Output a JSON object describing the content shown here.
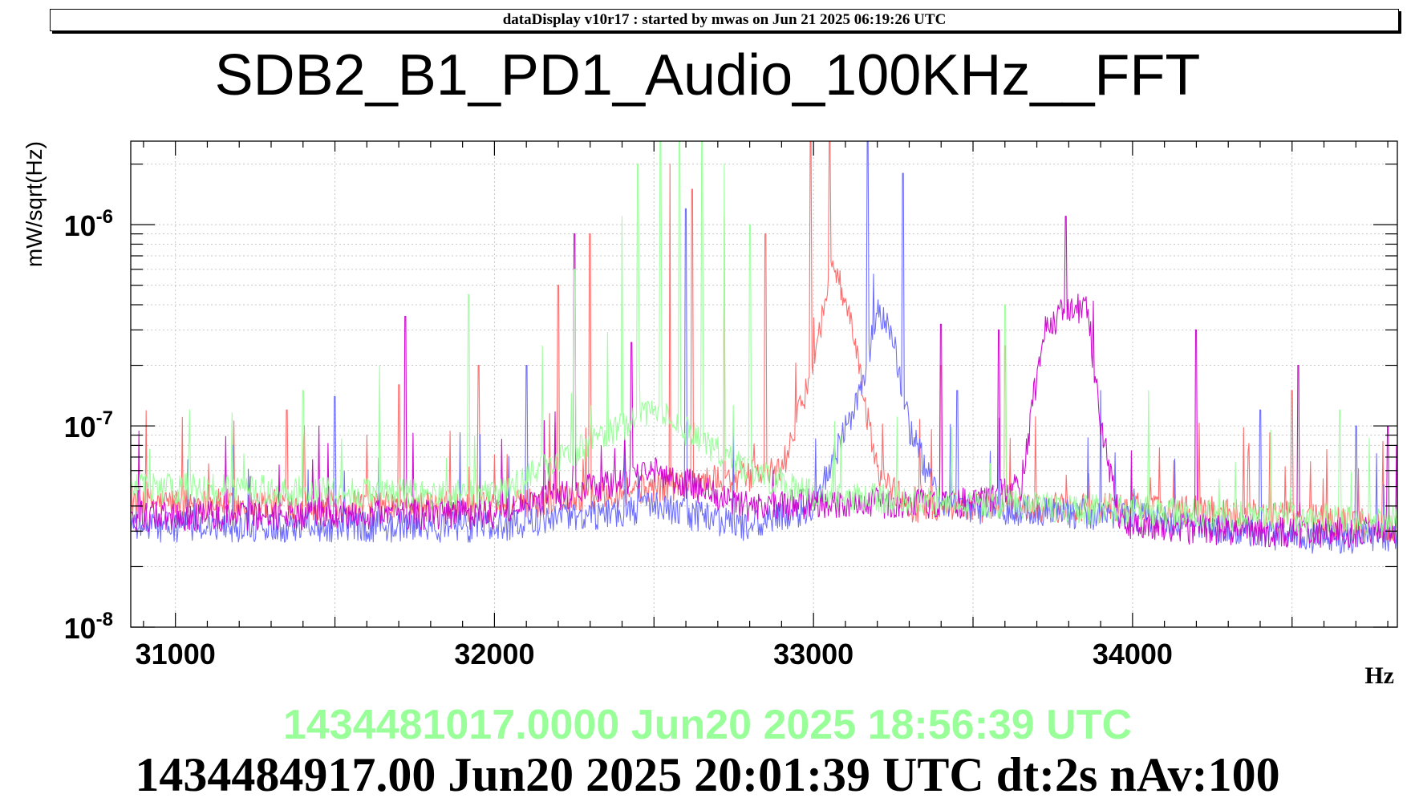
{
  "header": {
    "banner": "dataDisplay v10r17 : started by mwas on Jun 21 2025 06:19:26 UTC"
  },
  "footer": {
    "reference_stamp": "1434481017.0000 Jun20 2025 18:56:39 UTC",
    "current_stamp": "1434484917.00 Jun20 2025 20:01:39 UTC dt:2s nAv:100"
  },
  "colors": {
    "reference_trace": "#99ff99",
    "trace_red": "#ff6666",
    "trace_blue": "#6666ff",
    "trace_magenta": "#cc00cc",
    "grid": "#c8c8c8",
    "axis": "#000000"
  },
  "chart_data": {
    "type": "line",
    "title": "SDB2_B1_PD1_Audio_100KHz__FFT",
    "xlabel": "Hz",
    "ylabel": "mW/sqrt(Hz)",
    "xlim": [
      30860,
      34830
    ],
    "ylim": [
      1e-08,
      2.6e-06
    ],
    "yscale": "log",
    "grid": true,
    "legend": "none",
    "x_ticks": [
      31000,
      32000,
      33000,
      34000
    ],
    "x_tick_labels": [
      "31000",
      "32000",
      "33000",
      "34000"
    ],
    "y_ticks": [
      1e-08,
      1e-07,
      1e-06
    ],
    "y_tick_labels": [
      {
        "base": "10",
        "exp": "-8"
      },
      {
        "base": "10",
        "exp": "-7"
      },
      {
        "base": "10",
        "exp": "-6"
      }
    ],
    "series": [
      {
        "color": "#ff6666",
        "floor": [
          [
            30860,
            4.2e-08
          ],
          [
            32000,
            4e-08
          ],
          [
            32500,
            5e-08
          ],
          [
            32900,
            6e-08
          ],
          [
            33000,
            2e-07
          ],
          [
            33060,
            7e-07
          ],
          [
            33120,
            3e-07
          ],
          [
            33200,
            6e-08
          ],
          [
            33300,
            4e-08
          ],
          [
            34000,
            4e-08
          ],
          [
            34500,
            3.6e-08
          ],
          [
            34830,
            3.2e-08
          ]
        ],
        "peaks": [
          [
            31350,
            1.2e-07
          ],
          [
            31700,
            1.6e-07
          ],
          [
            31950,
            2e-07
          ],
          [
            32200,
            5e-07
          ],
          [
            32300,
            9e-07
          ],
          [
            32550,
            2e-06
          ],
          [
            32620,
            1.5e-06
          ],
          [
            32720,
            1.1e-06
          ],
          [
            32850,
            9e-07
          ],
          [
            32990,
            2.6e-06
          ],
          [
            33050,
            2.6e-06
          ],
          [
            33400,
            2e-07
          ],
          [
            33600,
            2.5e-07
          ],
          [
            34500,
            1.5e-07
          ]
        ]
      },
      {
        "color": "#6666ff",
        "floor": [
          [
            30860,
            3.2e-08
          ],
          [
            32000,
            3.2e-08
          ],
          [
            32500,
            4e-08
          ],
          [
            32800,
            3.2e-08
          ],
          [
            33000,
            4e-08
          ],
          [
            33150,
            1.5e-07
          ],
          [
            33200,
            3.7e-07
          ],
          [
            33250,
            2.8e-07
          ],
          [
            33300,
            1e-07
          ],
          [
            33400,
            4e-08
          ],
          [
            34000,
            3.6e-08
          ],
          [
            34500,
            2.8e-08
          ],
          [
            34830,
            2.8e-08
          ]
        ],
        "peaks": [
          [
            31500,
            1.4e-07
          ],
          [
            32100,
            2e-07
          ],
          [
            32600,
            1.2e-06
          ],
          [
            33170,
            2.6e-06
          ],
          [
            33280,
            1.8e-06
          ],
          [
            33450,
            1.5e-07
          ],
          [
            33900,
            1.5e-07
          ],
          [
            34400,
            1.2e-07
          ],
          [
            34700,
            1e-07
          ]
        ]
      },
      {
        "color": "#cc00cc",
        "floor": [
          [
            30860,
            3.6e-08
          ],
          [
            32000,
            3.7e-08
          ],
          [
            32500,
            6e-08
          ],
          [
            32800,
            4e-08
          ],
          [
            33000,
            4.2e-08
          ],
          [
            33500,
            4.2e-08
          ],
          [
            33650,
            5e-08
          ],
          [
            33720,
            3e-07
          ],
          [
            33800,
            4e-07
          ],
          [
            33860,
            3.8e-07
          ],
          [
            33900,
            1e-07
          ],
          [
            33960,
            3.5e-08
          ],
          [
            34000,
            3.2e-08
          ],
          [
            34500,
            3e-08
          ],
          [
            34830,
            3e-08
          ]
        ],
        "peaks": [
          [
            31450,
            1e-07
          ],
          [
            31720,
            3.5e-07
          ],
          [
            32250,
            9e-07
          ],
          [
            32430,
            2.6e-07
          ],
          [
            33400,
            3.2e-07
          ],
          [
            33580,
            3e-07
          ],
          [
            33790,
            1.1e-06
          ],
          [
            34200,
            3e-07
          ],
          [
            34520,
            2e-07
          ],
          [
            34800,
            1e-07
          ]
        ]
      },
      {
        "color": "#99ff99",
        "floor": [
          [
            30860,
            5e-08
          ],
          [
            32000,
            4.6e-08
          ],
          [
            32500,
            1.2e-07
          ],
          [
            32800,
            6e-08
          ],
          [
            33000,
            4.6e-08
          ],
          [
            34000,
            3.8e-08
          ],
          [
            34830,
            3.4e-08
          ]
        ],
        "peaks": [
          [
            31400,
            1.5e-07
          ],
          [
            31640,
            2e-07
          ],
          [
            31920,
            4.5e-07
          ],
          [
            32150,
            2.5e-07
          ],
          [
            32250,
            6e-07
          ],
          [
            32400,
            1.1e-06
          ],
          [
            32450,
            2e-06
          ],
          [
            32520,
            2.6e-06
          ],
          [
            32580,
            2.6e-06
          ],
          [
            32650,
            2.6e-06
          ],
          [
            32720,
            2e-06
          ],
          [
            32800,
            1e-06
          ],
          [
            33600,
            4e-07
          ],
          [
            34050,
            1.5e-07
          ],
          [
            34650,
            1.2e-07
          ]
        ]
      }
    ]
  }
}
